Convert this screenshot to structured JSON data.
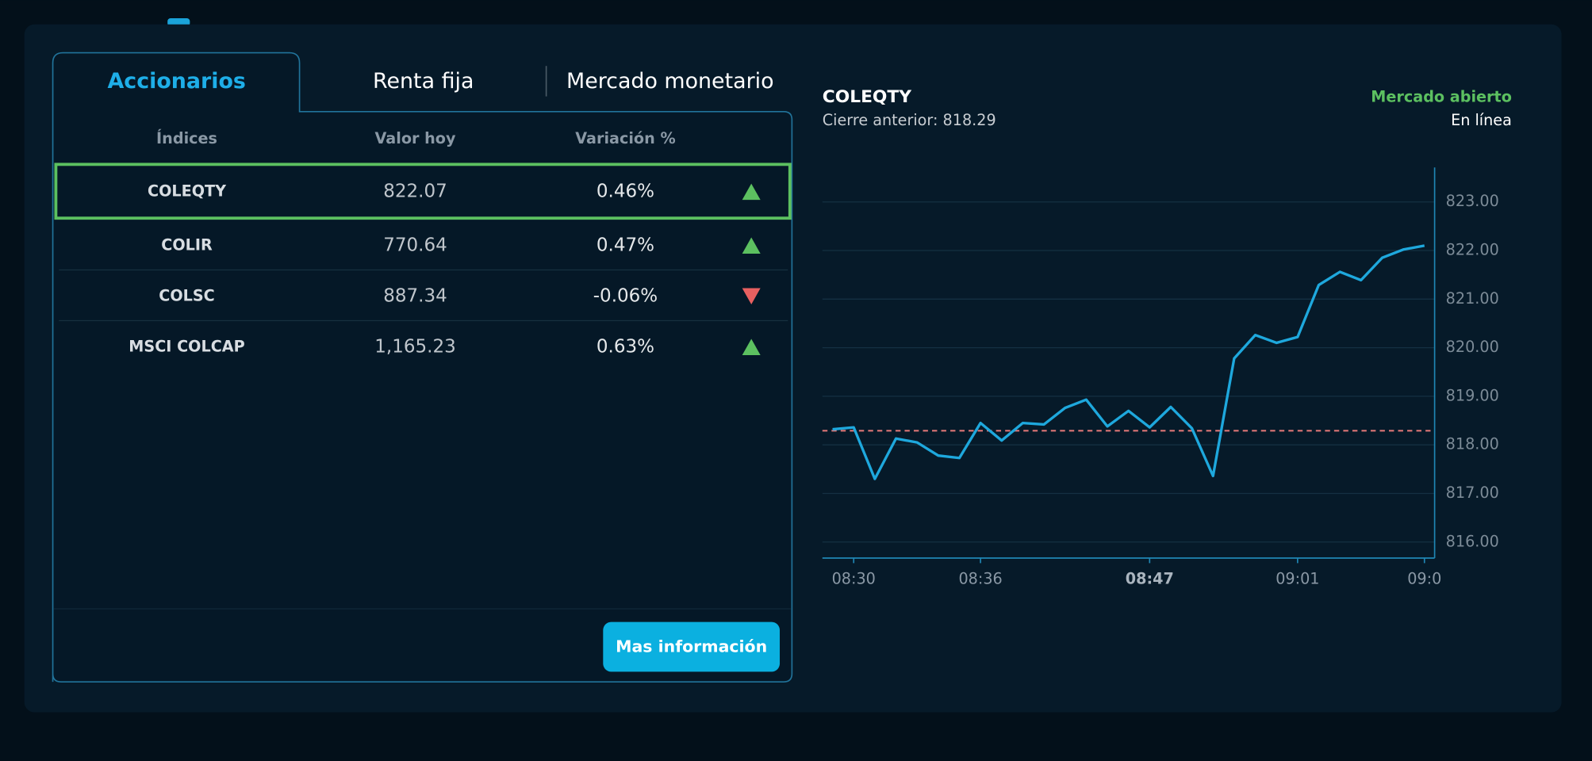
{
  "tabs": [
    "Accionarios",
    "Renta fija",
    "Mercado monetario"
  ],
  "active_tab": 0,
  "table": {
    "headers": [
      "Índices",
      "Valor hoy",
      "Variación %"
    ],
    "rows": [
      [
        "COLEQTY",
        "822.07",
        "0.46%"
      ],
      [
        "COLIR",
        "770.64",
        "0.47%"
      ],
      [
        "COLSC",
        "887.34",
        "-0.06%"
      ],
      [
        "MSCI COLCAP",
        "1,165.23",
        "0.63%"
      ]
    ],
    "trends": [
      "up",
      "up",
      "down",
      "up"
    ],
    "selected_row": 0
  },
  "button": "Mas información",
  "chart_data": {
    "type": "line",
    "title": "COLEQTY",
    "subtitle": "Cierre anterior: 818.29",
    "status": "Mercado abierto",
    "status_color": "#5cc060",
    "connection": "En línea",
    "reference_value": 818.29,
    "reference_color": "#e87a7a",
    "categories": [
      null,
      "08:30",
      null,
      null,
      null,
      null,
      null,
      "08:36",
      null,
      null,
      null,
      null,
      null,
      null,
      null,
      "08:47",
      null,
      null,
      null,
      null,
      null,
      null,
      "09:01",
      null,
      null,
      null,
      null,
      null,
      "09:0"
    ],
    "highlighted_category": 15,
    "series": [
      {
        "name": "COLEQTY",
        "color": "#1ea8dd",
        "values": [
          818.32,
          818.36,
          817.3,
          818.13,
          818.05,
          817.78,
          817.73,
          818.45,
          818.09,
          818.45,
          818.42,
          818.76,
          818.93,
          818.38,
          818.7,
          818.36,
          818.78,
          818.34,
          817.36,
          819.78,
          820.26,
          820.1,
          820.22,
          821.29,
          821.56,
          821.39,
          821.85,
          822.02,
          822.1
        ]
      }
    ],
    "ylim": [
      815.67,
      823.71
    ],
    "yticks": [
      {
        "value": 816,
        "label": "816.00"
      },
      {
        "value": 817,
        "label": "817.00"
      },
      {
        "value": 818,
        "label": "818.00"
      },
      {
        "value": 819,
        "label": "819.00"
      },
      {
        "value": 820,
        "label": "820.00"
      },
      {
        "value": 821,
        "label": "821.00"
      },
      {
        "value": 822,
        "label": "822.00"
      },
      {
        "value": 823,
        "label": "823.00"
      }
    ],
    "grid": true
  }
}
